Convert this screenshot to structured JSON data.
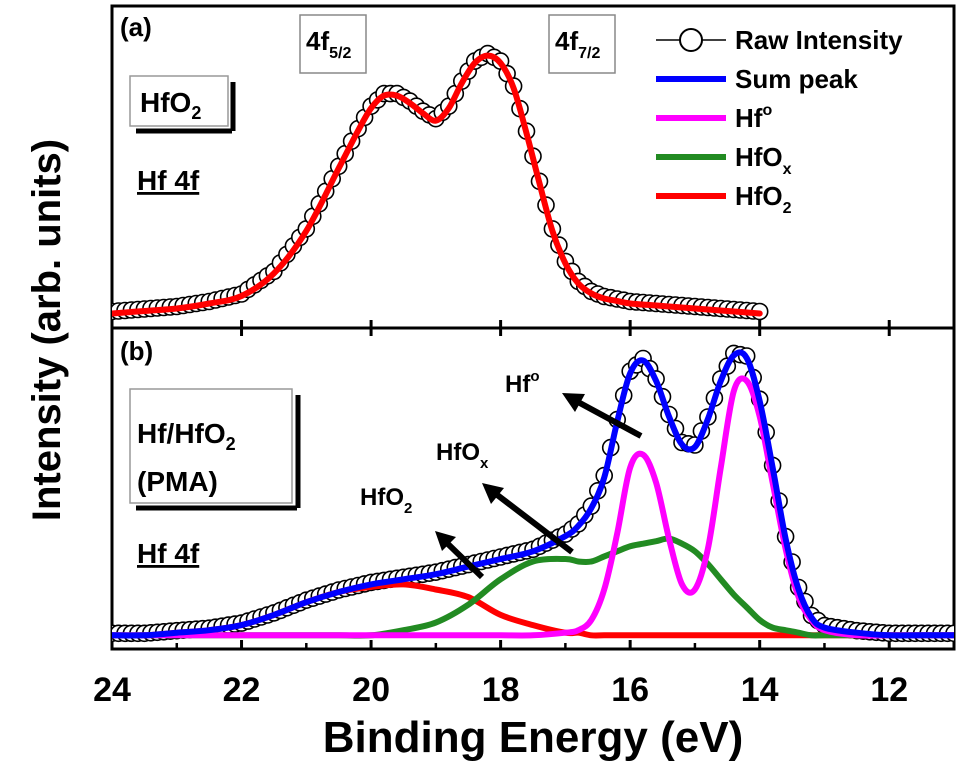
{
  "figure": {
    "y_axis_label": "Intensity (arb. units)",
    "x_axis_label": "Binding Energy (eV)"
  },
  "colors": {
    "raw": "#000000",
    "sum": "#0000ff",
    "hf_metal": "#ff00ff",
    "hfox": "#228b22",
    "hfo2": "#ff0000"
  },
  "chart_data": [
    {
      "panel": "(a)",
      "type": "line",
      "sample": {
        "main": "HfO",
        "sub": "2"
      },
      "core_level": "Hf 4f",
      "peak_labels": [
        {
          "main": "4f",
          "sub": "5/2"
        },
        {
          "main": "4f",
          "sub": "7/2"
        }
      ],
      "xlabel": "Binding Energy (eV)",
      "ylabel": "Intensity (arb. units)",
      "xlim": [
        24,
        11
      ],
      "ylim": [
        -0.05,
        1.22
      ],
      "legend": {
        "placement": "top-right",
        "entries": [
          {
            "key": "raw",
            "main": "Raw Intensity",
            "sub": "",
            "sup": "",
            "style": "circle-line"
          },
          {
            "key": "sum",
            "main": "Sum peak",
            "sub": "",
            "sup": "",
            "style": "line"
          },
          {
            "key": "hf_metal",
            "main": "Hf",
            "sub": "",
            "sup": "o",
            "style": "line"
          },
          {
            "key": "hfox",
            "main": "HfO",
            "sub": "x",
            "sup": "",
            "style": "line"
          },
          {
            "key": "hfo2",
            "main": "HfO",
            "sub": "2",
            "sup": "",
            "style": "line"
          }
        ]
      },
      "x": [
        24.0,
        23.5,
        23.0,
        22.5,
        22.0,
        21.5,
        21.0,
        20.5,
        20.2,
        20.0,
        19.8,
        19.6,
        19.4,
        19.2,
        19.0,
        18.8,
        18.6,
        18.4,
        18.2,
        18.0,
        17.8,
        17.6,
        17.4,
        17.2,
        17.0,
        16.8,
        16.6,
        16.4,
        16.2,
        16.0,
        15.5,
        15.0,
        14.5,
        14.0
      ],
      "series": [
        {
          "name": "HfO2",
          "key": "hfo2",
          "values": [
            0.0,
            0.01,
            0.02,
            0.04,
            0.07,
            0.16,
            0.33,
            0.58,
            0.73,
            0.82,
            0.87,
            0.87,
            0.84,
            0.8,
            0.77,
            0.82,
            0.92,
            1.0,
            1.03,
            1.0,
            0.9,
            0.72,
            0.52,
            0.33,
            0.2,
            0.12,
            0.08,
            0.06,
            0.05,
            0.04,
            0.03,
            0.02,
            0.01,
            0.0
          ]
        }
      ]
    },
    {
      "panel": "(b)",
      "type": "line",
      "sample": {
        "line1": "Hf/HfO",
        "line1_sub": "2",
        "line2": "(PMA)"
      },
      "core_level": "Hf 4f",
      "annotations": [
        {
          "key": "hf_metal",
          "main": "Hf",
          "sub": "",
          "sup": "o"
        },
        {
          "key": "hfox",
          "main": "HfO",
          "sub": "x",
          "sup": ""
        },
        {
          "key": "hfo2",
          "main": "HfO",
          "sub": "2",
          "sup": ""
        }
      ],
      "xlabel": "Binding Energy (eV)",
      "ylabel": "Intensity (arb. units)",
      "xlim": [
        24,
        11
      ],
      "ylim": [
        -0.05,
        1.2
      ],
      "x": [
        24.0,
        23.5,
        23.0,
        22.5,
        22.0,
        21.5,
        21.0,
        20.5,
        20.0,
        19.5,
        19.0,
        18.5,
        18.0,
        17.5,
        17.0,
        16.8,
        16.6,
        16.4,
        16.2,
        16.0,
        15.8,
        15.6,
        15.4,
        15.2,
        15.0,
        14.8,
        14.6,
        14.4,
        14.2,
        14.0,
        13.8,
        13.6,
        13.4,
        13.2,
        13.0,
        12.5,
        12.0,
        11.5,
        11.0
      ],
      "series": [
        {
          "name": "Sum peak",
          "key": "sum",
          "values": [
            0.0,
            0.0,
            0.01,
            0.02,
            0.04,
            0.08,
            0.13,
            0.17,
            0.2,
            0.22,
            0.24,
            0.27,
            0.3,
            0.33,
            0.39,
            0.43,
            0.5,
            0.62,
            0.84,
            1.03,
            1.08,
            1.0,
            0.86,
            0.75,
            0.74,
            0.85,
            1.0,
            1.1,
            1.09,
            0.92,
            0.66,
            0.38,
            0.18,
            0.07,
            0.03,
            0.01,
            0.0,
            0.0,
            0.0
          ]
        },
        {
          "name": "Hf metal",
          "key": "hf_metal",
          "values": [
            0.0,
            0.0,
            0.0,
            0.0,
            0.0,
            0.0,
            0.0,
            0.0,
            0.0,
            0.0,
            0.0,
            0.0,
            0.0,
            0.0,
            0.01,
            0.02,
            0.06,
            0.18,
            0.4,
            0.66,
            0.71,
            0.6,
            0.38,
            0.2,
            0.18,
            0.34,
            0.66,
            0.96,
            1.0,
            0.86,
            0.6,
            0.34,
            0.15,
            0.06,
            0.02,
            0.0,
            0.0,
            0.0,
            0.0
          ]
        },
        {
          "name": "HfOx",
          "key": "hfox",
          "values": [
            0.0,
            0.0,
            0.0,
            0.0,
            0.0,
            0.0,
            0.0,
            0.0,
            0.0,
            0.02,
            0.05,
            0.12,
            0.22,
            0.29,
            0.3,
            0.29,
            0.29,
            0.31,
            0.33,
            0.35,
            0.36,
            0.37,
            0.38,
            0.36,
            0.33,
            0.28,
            0.22,
            0.16,
            0.11,
            0.06,
            0.03,
            0.02,
            0.01,
            0.0,
            0.0,
            0.0,
            0.0,
            0.0,
            0.0
          ]
        },
        {
          "name": "HfO2",
          "key": "hfo2",
          "values": [
            0.0,
            0.0,
            0.01,
            0.02,
            0.04,
            0.08,
            0.13,
            0.17,
            0.19,
            0.2,
            0.18,
            0.15,
            0.08,
            0.04,
            0.01,
            0.01,
            0.0,
            0.0,
            0.0,
            0.0,
            0.0,
            0.0,
            0.0,
            0.0,
            0.0,
            0.0,
            0.0,
            0.0,
            0.0,
            0.0,
            0.0,
            0.0,
            0.0,
            0.0,
            0.0,
            0.0,
            0.0,
            0.0,
            0.0
          ]
        }
      ]
    }
  ],
  "x_ticks": [
    {
      "value": 24,
      "label": "24"
    },
    {
      "value": 22,
      "label": "22"
    },
    {
      "value": 20,
      "label": "20"
    },
    {
      "value": 18,
      "label": "18"
    },
    {
      "value": 16,
      "label": "16"
    },
    {
      "value": 14,
      "label": "14"
    },
    {
      "value": 12,
      "label": "12"
    }
  ]
}
